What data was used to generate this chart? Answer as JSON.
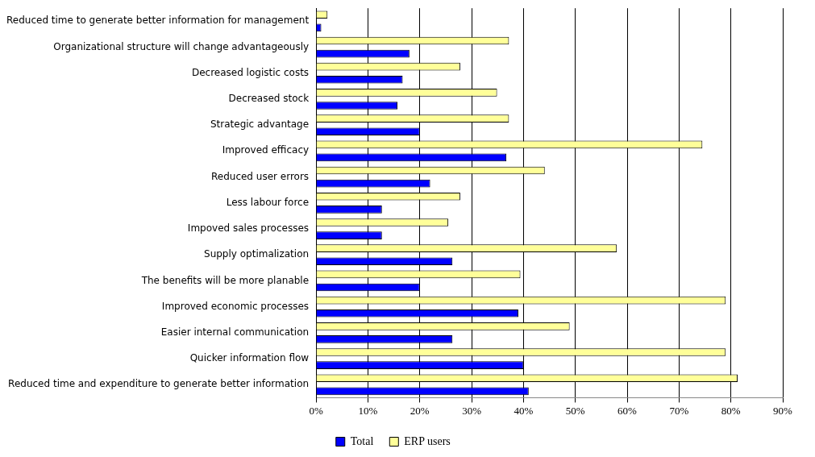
{
  "chart_data": {
    "type": "bar",
    "orientation": "horizontal",
    "categories": [
      "Reduced time to generate better information for management",
      "Organizational structure will change advantageously",
      "Decreased logistic costs",
      "Decreased stock",
      "Strategic advantage",
      "Improved efficacy",
      "Reduced user errors",
      "Less labour force",
      "Impoved sales processes",
      "Supply optimalization",
      "The benefits will be more planable",
      "Improved economic processes ",
      "Easier internal communication",
      "Quicker information flow",
      "Reduced time and expenditure to generate better information"
    ],
    "series": [
      {
        "name": "Total",
        "color": "#0000ff",
        "values": [
          1,
          18,
          16.7,
          15.7,
          20,
          36.7,
          22,
          12.7,
          12.7,
          26.3,
          20,
          39,
          26.3,
          40,
          41
        ]
      },
      {
        "name": "ERP users",
        "color": "#ffff99",
        "values": [
          2.2,
          37.2,
          27.8,
          34.9,
          37.2,
          74.5,
          44.1,
          27.8,
          25.5,
          58,
          39.4,
          79,
          48.9,
          79,
          81.3
        ]
      }
    ],
    "xlim": [
      0,
      90
    ],
    "xticks": [
      {
        "value": 0,
        "label": "0%"
      },
      {
        "value": 10,
        "label": "10%"
      },
      {
        "value": 20,
        "label": "20%"
      },
      {
        "value": 30,
        "label": "30%"
      },
      {
        "value": 40,
        "label": "40%"
      },
      {
        "value": 50,
        "label": "50%"
      },
      {
        "value": 60,
        "label": "60%"
      },
      {
        "value": 70,
        "label": "70%"
      },
      {
        "value": 80,
        "label": "80%"
      },
      {
        "value": 90,
        "label": "90%"
      }
    ],
    "grid": "x",
    "legend": "bottom"
  }
}
